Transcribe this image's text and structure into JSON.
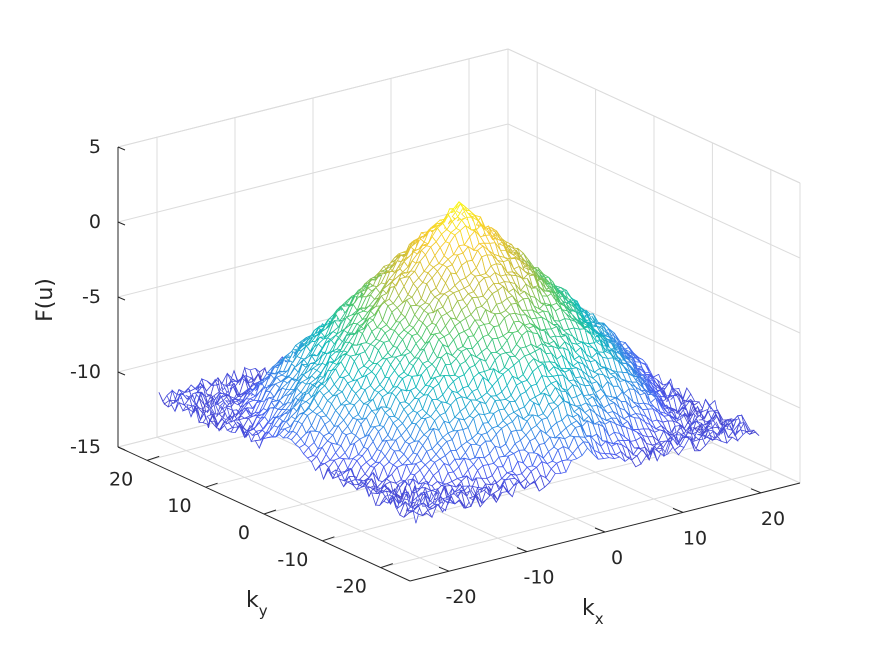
{
  "chart_data": {
    "type": "surface",
    "description_of_function": "log spectrum: cone peaking at (kx=0, ky=0) with noisy floor",
    "xlabel": "k",
    "xlabel_sub": "x",
    "ylabel": "k",
    "ylabel_sub": "y",
    "zlabel": "F(u)",
    "xlim": [
      -25,
      25
    ],
    "ylim": [
      -25,
      25
    ],
    "zlim": [
      -15,
      5
    ],
    "x_ticks": [
      -20,
      -10,
      0,
      10,
      20
    ],
    "y_ticks": [
      -20,
      -10,
      0,
      10,
      20
    ],
    "z_ticks": [
      -15,
      -10,
      -5,
      0,
      5
    ],
    "x_tick_labels": [
      "-20",
      "-10",
      "0",
      "10",
      "20"
    ],
    "y_tick_labels": [
      "-20",
      "-10",
      "0",
      "10",
      "20"
    ],
    "z_tick_labels": [
      "-15",
      "-10",
      "-5",
      "0",
      "5"
    ],
    "peak": {
      "kx": 0,
      "ky": 0,
      "value": 2.5
    },
    "floor_value": -11.5,
    "cone_slope_per_unit_k": 0.6,
    "colormap": [
      "#3e26a8",
      "#4a5ef2",
      "#2f96e0",
      "#10bcb8",
      "#4ac66a",
      "#c0bc3c",
      "#f6c92f",
      "#f9fb15"
    ],
    "grid": true
  }
}
